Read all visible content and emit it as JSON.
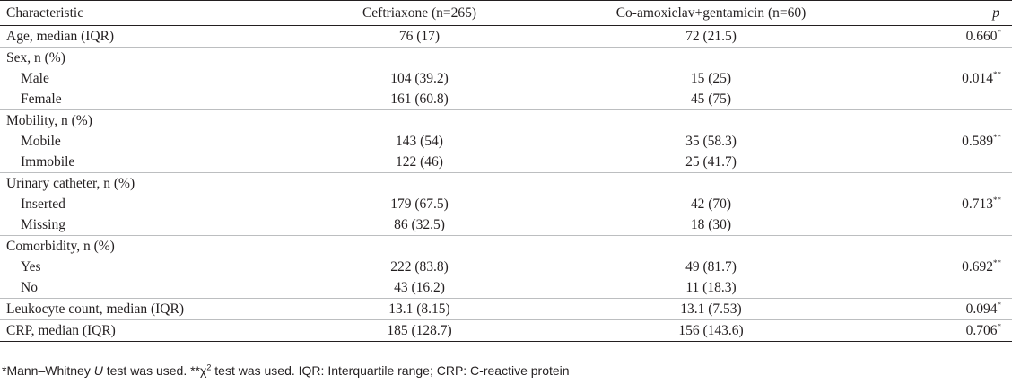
{
  "table": {
    "headers": {
      "characteristic": "Characteristic",
      "ceftriaxone": "Ceftriaxone (n=265)",
      "coamox": "Co-amoxiclav+gentamicin (n=60)",
      "p": "p"
    },
    "rows": [
      {
        "label": "Age, median (IQR)",
        "ceftriaxone": "76 (17)",
        "coamox": "72 (21.5)",
        "p": "0.660",
        "p_mark": "*",
        "indent": false,
        "group_start": true
      },
      {
        "label": "Sex, n (%)",
        "ceftriaxone": "",
        "coamox": "",
        "p": "",
        "p_mark": "",
        "indent": false,
        "group_start": true
      },
      {
        "label": "Male",
        "ceftriaxone": "104 (39.2)",
        "coamox": "15 (25)",
        "p": "0.014",
        "p_mark": "**",
        "indent": true,
        "group_start": false
      },
      {
        "label": "Female",
        "ceftriaxone": "161 (60.8)",
        "coamox": "45 (75)",
        "p": "",
        "p_mark": "",
        "indent": true,
        "group_start": false
      },
      {
        "label": "Mobility, n (%)",
        "ceftriaxone": "",
        "coamox": "",
        "p": "",
        "p_mark": "",
        "indent": false,
        "group_start": true
      },
      {
        "label": "Mobile",
        "ceftriaxone": "143 (54)",
        "coamox": "35 (58.3)",
        "p": "0.589",
        "p_mark": "**",
        "indent": true,
        "group_start": false
      },
      {
        "label": "Immobile",
        "ceftriaxone": "122 (46)",
        "coamox": "25 (41.7)",
        "p": "",
        "p_mark": "",
        "indent": true,
        "group_start": false
      },
      {
        "label": "Urinary catheter, n (%)",
        "ceftriaxone": "",
        "coamox": "",
        "p": "",
        "p_mark": "",
        "indent": false,
        "group_start": true
      },
      {
        "label": "Inserted",
        "ceftriaxone": "179 (67.5)",
        "coamox": "42 (70)",
        "p": "0.713",
        "p_mark": "**",
        "indent": true,
        "group_start": false
      },
      {
        "label": "Missing",
        "ceftriaxone": "86 (32.5)",
        "coamox": "18 (30)",
        "p": "",
        "p_mark": "",
        "indent": true,
        "group_start": false
      },
      {
        "label": "Comorbidity, n (%)",
        "ceftriaxone": "",
        "coamox": "",
        "p": "",
        "p_mark": "",
        "indent": false,
        "group_start": true
      },
      {
        "label": "Yes",
        "ceftriaxone": "222 (83.8)",
        "coamox": "49 (81.7)",
        "p": "0.692",
        "p_mark": "**",
        "indent": true,
        "group_start": false
      },
      {
        "label": "No",
        "ceftriaxone": "43 (16.2)",
        "coamox": "11 (18.3)",
        "p": "",
        "p_mark": "",
        "indent": true,
        "group_start": false
      },
      {
        "label": "Leukocyte count, median (IQR)",
        "ceftriaxone": "13.1 (8.15)",
        "coamox": "13.1 (7.53)",
        "p": "0.094",
        "p_mark": "*",
        "indent": false,
        "group_start": true
      },
      {
        "label": "CRP, median (IQR)",
        "ceftriaxone": "185 (128.7)",
        "coamox": "156 (143.6)",
        "p": "0.706",
        "p_mark": "*",
        "indent": false,
        "group_start": true
      }
    ]
  },
  "footnote": {
    "part1": "*Mann–Whitney ",
    "u": "U",
    "part2": " test was used. **χ",
    "sq": "2",
    "part3": " test was used. IQR: Interquartile range; CRP: C-reactive protein"
  }
}
